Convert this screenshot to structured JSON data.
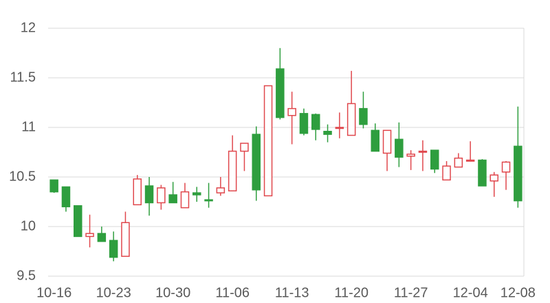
{
  "chart_data": {
    "type": "candlestick",
    "categories": [
      "10-16",
      null,
      null,
      null,
      null,
      "10-23",
      null,
      null,
      null,
      null,
      "10-30",
      null,
      null,
      null,
      null,
      "11-06",
      null,
      null,
      null,
      null,
      "11-13",
      null,
      null,
      null,
      null,
      "11-20",
      null,
      null,
      null,
      null,
      "11-27",
      null,
      null,
      null,
      null,
      "12-04",
      null,
      null,
      null,
      "12-08"
    ],
    "open": [
      10.47,
      10.4,
      10.21,
      9.9,
      9.93,
      9.86,
      9.7,
      10.22,
      10.41,
      10.24,
      10.32,
      10.19,
      10.34,
      10.27,
      10.34,
      10.36,
      10.76,
      10.93,
      10.31,
      11.59,
      11.12,
      11.14,
      11.13,
      10.96,
      10.99,
      10.92,
      11.19,
      10.97,
      10.74,
      10.88,
      10.71,
      10.75,
      10.77,
      10.47,
      10.6,
      10.66,
      10.67,
      10.46,
      10.55,
      10.81
    ],
    "high": [
      10.47,
      10.4,
      10.21,
      10.12,
      10.0,
      9.95,
      10.15,
      10.52,
      10.5,
      10.42,
      10.45,
      10.44,
      10.4,
      10.44,
      10.5,
      10.92,
      10.84,
      11.01,
      11.42,
      11.8,
      11.36,
      11.19,
      11.14,
      11.03,
      11.15,
      11.57,
      11.36,
      11.04,
      10.97,
      11.05,
      10.77,
      10.87,
      10.77,
      10.66,
      10.74,
      10.86,
      10.68,
      10.55,
      10.66,
      11.21
    ],
    "low": [
      10.34,
      10.15,
      9.9,
      9.79,
      9.85,
      9.65,
      9.7,
      10.22,
      10.11,
      10.17,
      10.24,
      10.19,
      10.25,
      10.19,
      10.31,
      10.36,
      10.56,
      10.26,
      10.31,
      11.08,
      10.83,
      10.92,
      10.87,
      10.85,
      10.89,
      10.92,
      10.99,
      10.76,
      10.56,
      10.6,
      10.57,
      10.56,
      10.54,
      10.47,
      10.6,
      10.66,
      10.41,
      10.3,
      10.37,
      10.19
    ],
    "close": [
      10.35,
      10.2,
      9.9,
      9.93,
      9.85,
      9.69,
      10.04,
      10.48,
      10.24,
      10.39,
      10.24,
      10.35,
      10.32,
      10.26,
      10.39,
      10.76,
      10.84,
      10.37,
      11.42,
      11.1,
      11.19,
      10.94,
      10.98,
      10.93,
      11.0,
      11.24,
      11.03,
      10.76,
      10.97,
      10.7,
      10.73,
      10.76,
      10.58,
      10.61,
      10.69,
      10.67,
      10.41,
      10.52,
      10.65,
      10.26
    ],
    "up_color": "#e0474c",
    "down_color": "#2e9e3e",
    "ylim": [
      9.5,
      12
    ],
    "yticks": [
      9.5,
      10,
      10.5,
      11,
      11.5,
      12
    ],
    "grid": true
  }
}
